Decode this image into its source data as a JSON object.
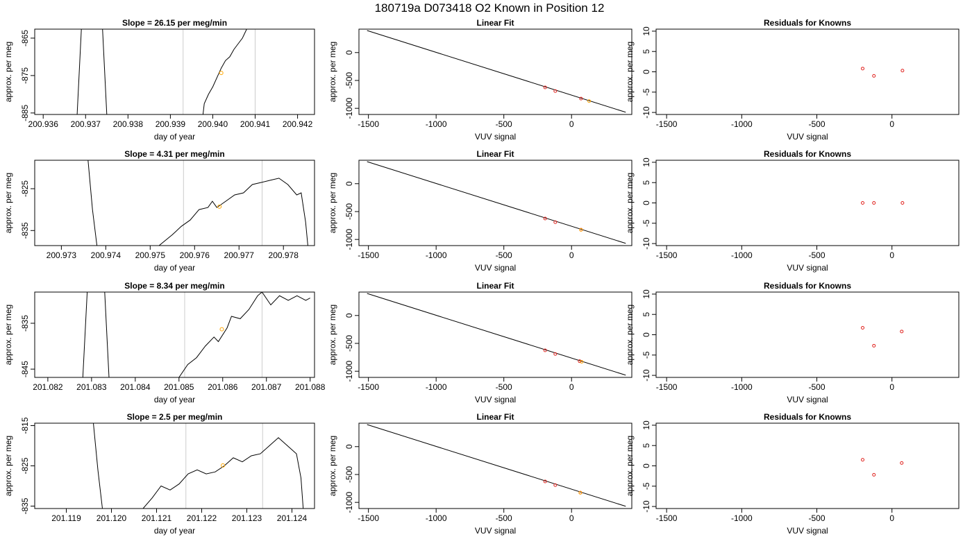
{
  "title": "180719a     D073418   O2 Known in Position  12",
  "colors": {
    "known": "#e0201c",
    "sample": "#ffa500",
    "line": "#000000",
    "vline": "#cccccc"
  },
  "chart_data": [
    {
      "type": "line",
      "row": 1,
      "title": "Slope =  26.15  per meg/min",
      "xlabel": "day of year",
      "ylabel": "approx. per meg",
      "xlim": [
        200.9358,
        200.9424
      ],
      "ylim": [
        -885.4,
        -862.6
      ],
      "xticks": [
        200.936,
        200.937,
        200.938,
        200.939,
        200.94,
        200.941,
        200.942
      ],
      "xtick_labels": [
        "200.936",
        "200.937",
        "200.938",
        "200.939",
        "200.940",
        "200.941",
        "200.942"
      ],
      "yticks": [
        -865,
        -875,
        -885
      ],
      "ytick_labels": [
        "-865",
        "-875",
        "-885"
      ],
      "vlines": [
        200.9393,
        200.941
      ],
      "series": [
        {
          "x": [
            200.9368,
            200.9369
          ],
          "y": [
            -885.4,
            -862.6
          ]
        },
        {
          "x": [
            200.9374,
            200.9375
          ],
          "y": [
            -862.6,
            -885.4
          ]
        },
        {
          "x": [
            200.93977,
            200.9398,
            200.9399,
            200.94,
            200.9401,
            200.9402,
            200.9403,
            200.9404,
            200.9405,
            200.9406,
            200.9407,
            200.9408
          ],
          "y": [
            -885.4,
            -882.5,
            -880,
            -878,
            -875.5,
            -873,
            -871,
            -870,
            -868,
            -866.5,
            -865,
            -862.6
          ]
        }
      ],
      "marker": {
        "x": 200.9402,
        "y": -874.3
      }
    },
    {
      "type": "scatter",
      "row": 1,
      "title": "Linear Fit",
      "xlabel": "VUV signal",
      "ylabel": "approx. per meg",
      "xlim": [
        -1570,
        445
      ],
      "ylim": [
        -1110,
        420
      ],
      "xticks": [
        -1500,
        -1000,
        -500,
        0
      ],
      "xtick_labels": [
        "-1500",
        "-1000",
        "-500",
        "0"
      ],
      "yticks": [
        0,
        -500,
        -1000
      ],
      "ytick_labels": [
        "0",
        "-500",
        "-1000"
      ],
      "fit": {
        "x": [
          -1510,
          400
        ],
        "y": [
          395,
          -1070
        ]
      },
      "known": {
        "x": [
          -195,
          -120,
          70
        ],
        "y": [
          -625,
          -690,
          -825
        ]
      },
      "sample": {
        "x": [
          130
        ],
        "y": [
          -870
        ]
      }
    },
    {
      "type": "scatter",
      "row": 1,
      "title": "Residuals for Knowns",
      "xlabel": "VUV signal",
      "ylabel": "approx. per meg",
      "xlim": [
        -1570,
        445
      ],
      "ylim": [
        -10.5,
        10.5
      ],
      "xticks": [
        -1500,
        -1000,
        -500,
        0
      ],
      "xtick_labels": [
        "-1500",
        "-1000",
        "-500",
        "0"
      ],
      "yticks": [
        10,
        5,
        0,
        -5,
        -10
      ],
      "ytick_labels": [
        "10",
        "5",
        "0",
        "-5",
        "-10"
      ],
      "known": {
        "x": [
          -195,
          -120,
          70
        ],
        "y": [
          0.8,
          -1.0,
          0.3
        ]
      }
    },
    {
      "type": "line",
      "row": 2,
      "title": "Slope =  4.31  per meg/min",
      "xlabel": "day of year",
      "ylabel": "approx. per meg",
      "xlim": [
        200.9724,
        200.9787
      ],
      "ylim": [
        -838.6,
        -818.2
      ],
      "xticks": [
        200.973,
        200.974,
        200.975,
        200.976,
        200.977,
        200.978
      ],
      "xtick_labels": [
        "200.973",
        "200.974",
        "200.975",
        "200.976",
        "200.977",
        "200.978"
      ],
      "yticks": [
        -825,
        -835
      ],
      "ytick_labels": [
        "-825",
        "-835"
      ],
      "vlines": [
        200.97575,
        200.97752
      ],
      "series": [
        {
          "x": [
            200.9736,
            200.9737,
            200.9738
          ],
          "y": [
            -818.2,
            -830,
            -838.6
          ]
        },
        {
          "x": [
            200.9752,
            200.9755,
            200.9757,
            200.9759,
            200.9761,
            200.9763,
            200.9764,
            200.9765,
            200.9767,
            200.9769,
            200.9771,
            200.9773,
            200.9775,
            200.9777,
            200.9779,
            200.9781,
            200.9783,
            200.9784,
            200.9785,
            200.97855
          ],
          "y": [
            -838.6,
            -836,
            -834,
            -832.5,
            -830,
            -829.5,
            -828,
            -829.5,
            -828,
            -826.5,
            -826,
            -824,
            -823.5,
            -823,
            -822.5,
            -824,
            -826.5,
            -826,
            -833,
            -838.6
          ]
        }
      ],
      "marker": {
        "x": 200.97656,
        "y": -829.3
      }
    },
    {
      "type": "scatter",
      "row": 2,
      "title": "Linear Fit",
      "xlabel": "VUV signal",
      "ylabel": "approx. per meg",
      "xlim": [
        -1570,
        445
      ],
      "ylim": [
        -1110,
        420
      ],
      "xticks": [
        -1500,
        -1000,
        -500,
        0
      ],
      "xtick_labels": [
        "-1500",
        "-1000",
        "-500",
        "0"
      ],
      "yticks": [
        0,
        -500,
        -1000
      ],
      "ytick_labels": [
        "0",
        "-500",
        "-1000"
      ],
      "fit": {
        "x": [
          -1510,
          400
        ],
        "y": [
          395,
          -1070
        ]
      },
      "known": {
        "x": [
          -195,
          -120,
          70
        ],
        "y": [
          -625,
          -690,
          -825
        ]
      },
      "sample": {
        "x": [
          70
        ],
        "y": [
          -828
        ]
      }
    },
    {
      "type": "scatter",
      "row": 2,
      "title": "Residuals for Knowns",
      "xlabel": "VUV signal",
      "ylabel": "approx. per meg",
      "xlim": [
        -1570,
        445
      ],
      "ylim": [
        -10.5,
        10.5
      ],
      "xticks": [
        -1500,
        -1000,
        -500,
        0
      ],
      "xtick_labels": [
        "-1500",
        "-1000",
        "-500",
        "0"
      ],
      "yticks": [
        10,
        5,
        0,
        -5,
        -10
      ],
      "ytick_labels": [
        "10",
        "5",
        "0",
        "-5",
        "-10"
      ],
      "known": {
        "x": [
          -195,
          -120,
          70
        ],
        "y": [
          0,
          0,
          0
        ]
      }
    },
    {
      "type": "line",
      "row": 3,
      "title": "Slope =  8.34  per meg/min",
      "xlabel": "day of year",
      "ylabel": "approx. per meg",
      "xlim": [
        201.0817,
        201.0881
      ],
      "ylim": [
        -846.8,
        -828.2
      ],
      "xticks": [
        201.082,
        201.083,
        201.084,
        201.085,
        201.086,
        201.087,
        201.088
      ],
      "xtick_labels": [
        "201.082",
        "201.083",
        "201.084",
        "201.085",
        "201.086",
        "201.087",
        "201.088"
      ],
      "yticks": [
        -835,
        -845
      ],
      "ytick_labels": [
        "-835",
        "-845"
      ],
      "vlines": [
        201.08513,
        201.0869
      ],
      "series": [
        {
          "x": [
            201.0828,
            201.0829
          ],
          "y": [
            -846.8,
            -828.2
          ]
        },
        {
          "x": [
            201.0833,
            201.0834
          ],
          "y": [
            -828.2,
            -846.8
          ]
        },
        {
          "x": [
            201.085,
            201.0852,
            201.0854,
            201.0856,
            201.0858,
            201.0859,
            201.0861,
            201.0862,
            201.0864,
            201.0866,
            201.0868,
            201.0869,
            201.0871,
            201.0873,
            201.0875,
            201.0877,
            201.0879,
            201.088
          ],
          "y": [
            -846.8,
            -844,
            -842.5,
            -840,
            -838,
            -839,
            -836,
            -833.5,
            -834,
            -832,
            -829,
            -828.2,
            -831,
            -829,
            -830,
            -829,
            -830,
            -829.5
          ]
        }
      ],
      "marker": {
        "x": 201.08598,
        "y": -836.3
      }
    },
    {
      "type": "scatter",
      "row": 3,
      "title": "Linear Fit",
      "xlabel": "VUV signal",
      "ylabel": "approx. per meg",
      "xlim": [
        -1570,
        445
      ],
      "ylim": [
        -1110,
        420
      ],
      "xticks": [
        -1500,
        -1000,
        -500,
        0
      ],
      "xtick_labels": [
        "-1500",
        "-1000",
        "-500",
        "0"
      ],
      "yticks": [
        0,
        -500,
        -1000
      ],
      "ytick_labels": [
        "0",
        "-500",
        "-1000"
      ],
      "fit": {
        "x": [
          -1510,
          400
        ],
        "y": [
          395,
          -1070
        ]
      },
      "known": {
        "x": [
          -195,
          -120,
          60
        ],
        "y": [
          -625,
          -690,
          -820
        ]
      },
      "sample": {
        "x": [
          75
        ],
        "y": [
          -830
        ]
      }
    },
    {
      "type": "scatter",
      "row": 3,
      "title": "Residuals for Knowns",
      "xlabel": "VUV signal",
      "ylabel": "approx. per meg",
      "xlim": [
        -1570,
        445
      ],
      "ylim": [
        -10.5,
        10.5
      ],
      "xticks": [
        -1500,
        -1000,
        -500,
        0
      ],
      "xtick_labels": [
        "-1500",
        "-1000",
        "-500",
        "0"
      ],
      "yticks": [
        10,
        5,
        0,
        -5,
        -10
      ],
      "ytick_labels": [
        "10",
        "5",
        "0",
        "-5",
        "-10"
      ],
      "known": {
        "x": [
          -195,
          -120,
          65
        ],
        "y": [
          1.7,
          -2.7,
          0.8
        ]
      }
    },
    {
      "type": "line",
      "row": 4,
      "title": "Slope =  2.5  per meg/min",
      "xlabel": "day of year",
      "ylabel": "approx. per meg",
      "xlim": [
        201.1183,
        201.1245
      ],
      "ylim": [
        -835.6,
        -814.4
      ],
      "xticks": [
        201.119,
        201.12,
        201.121,
        201.122,
        201.123,
        201.124
      ],
      "xtick_labels": [
        "201.119",
        "201.120",
        "201.121",
        "201.122",
        "201.123",
        "201.124"
      ],
      "yticks": [
        -815,
        -825,
        -835
      ],
      "ytick_labels": [
        "-815",
        "-825",
        "-835"
      ],
      "vlines": [
        201.12165,
        201.12335
      ],
      "series": [
        {
          "x": [
            201.1196,
            201.1197,
            201.1198
          ],
          "y": [
            -814.4,
            -826,
            -835.6
          ]
        },
        {
          "x": [
            201.1207,
            201.1209,
            201.1211,
            201.1213,
            201.1215,
            201.1217,
            201.1219,
            201.1221,
            201.1223,
            201.1225,
            201.1227,
            201.1229,
            201.1231,
            201.1233,
            201.1235,
            201.1237,
            201.1239,
            201.1241,
            201.1242,
            201.12425
          ],
          "y": [
            -835.6,
            -833,
            -830,
            -831,
            -829.5,
            -827,
            -826,
            -827,
            -826.5,
            -825,
            -823,
            -824,
            -822.5,
            -822,
            -820,
            -818,
            -820,
            -822,
            -828,
            -835.6
          ]
        }
      ],
      "marker": {
        "x": 201.12247,
        "y": -824.9
      }
    },
    {
      "type": "scatter",
      "row": 4,
      "title": "Linear Fit",
      "xlabel": "VUV signal",
      "ylabel": "approx. per meg",
      "xlim": [
        -1570,
        445
      ],
      "ylim": [
        -1110,
        420
      ],
      "xticks": [
        -1500,
        -1000,
        -500,
        0
      ],
      "xtick_labels": [
        "-1500",
        "-1000",
        "-500",
        "0"
      ],
      "yticks": [
        0,
        -500,
        -1000
      ],
      "ytick_labels": [
        "0",
        "-500",
        "-1000"
      ],
      "fit": {
        "x": [
          -1510,
          400
        ],
        "y": [
          395,
          -1070
        ]
      },
      "known": {
        "x": [
          -195,
          -120,
          65
        ],
        "y": [
          -625,
          -690,
          -825
        ]
      },
      "sample": {
        "x": [
          65
        ],
        "y": [
          -828
        ]
      }
    },
    {
      "type": "scatter",
      "row": 4,
      "title": "Residuals for Knowns",
      "xlabel": "VUV signal",
      "ylabel": "approx. per meg",
      "xlim": [
        -1570,
        445
      ],
      "ylim": [
        -10.5,
        10.5
      ],
      "xticks": [
        -1500,
        -1000,
        -500,
        0
      ],
      "xtick_labels": [
        "-1500",
        "-1000",
        "-500",
        "0"
      ],
      "yticks": [
        10,
        5,
        0,
        -5,
        -10
      ],
      "ytick_labels": [
        "10",
        "5",
        "0",
        "-5",
        "-10"
      ],
      "known": {
        "x": [
          -195,
          -120,
          65
        ],
        "y": [
          1.5,
          -2.2,
          0.7
        ]
      }
    }
  ]
}
